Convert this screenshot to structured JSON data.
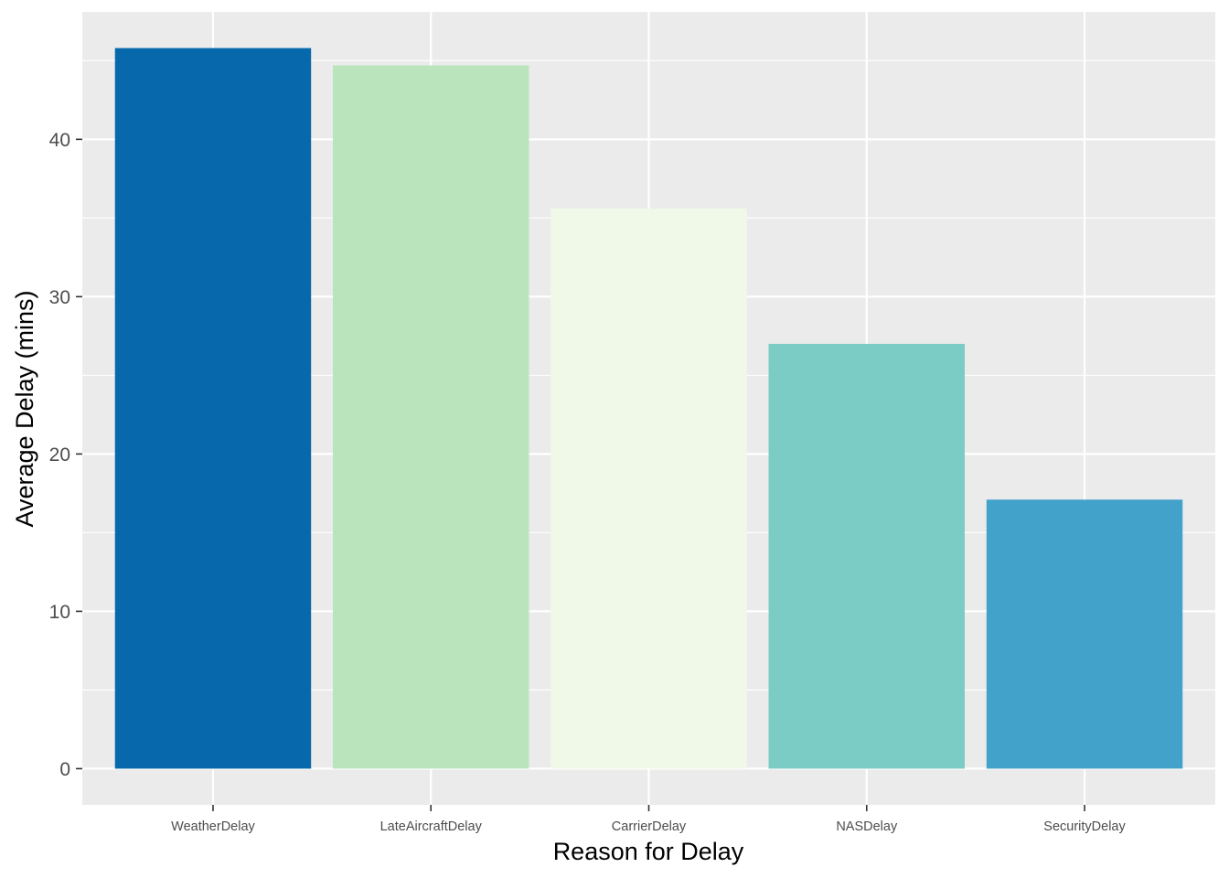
{
  "chart_data": {
    "type": "bar",
    "title": "",
    "xlabel": "Reason for Delay",
    "ylabel": "Average Delay (mins)",
    "categories": [
      "WeatherDelay",
      "LateAircraftDelay",
      "CarrierDelay",
      "NASDelay",
      "SecurityDelay"
    ],
    "values": [
      45.8,
      44.7,
      35.6,
      27.0,
      17.1
    ],
    "colors": [
      "#0868AC",
      "#BAE4BC",
      "#F0F9E8",
      "#7BCCC4",
      "#43A2CA"
    ],
    "ylim": [
      -2.3,
      48.1
    ],
    "yticks": [
      0,
      10,
      20,
      30,
      40
    ],
    "ytick_labels": [
      "0",
      "10",
      "20",
      "30",
      "40"
    ],
    "grid": true,
    "legend": "none",
    "panel_background": "#EBEBEB",
    "grid_color": "#FFFFFF"
  }
}
